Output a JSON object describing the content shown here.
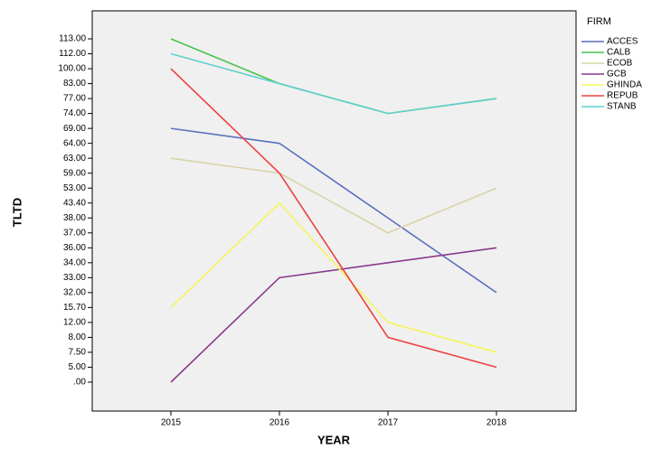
{
  "chart_data": {
    "type": "line",
    "x_label": "YEAR",
    "y_label": "TLTD",
    "y_scale": "ordinal",
    "legend_title": "FIRM",
    "legend_position": "right",
    "background": "#f0f0f0",
    "categories": [
      "2015",
      "2016",
      "2017",
      "2018"
    ],
    "yticks": [
      {
        "value": 113,
        "label": "113.00"
      },
      {
        "value": 112,
        "label": "112.00"
      },
      {
        "value": 100,
        "label": "100.00"
      },
      {
        "value": 83,
        "label": "83.00"
      },
      {
        "value": 77,
        "label": "77.00"
      },
      {
        "value": 74,
        "label": "74.00"
      },
      {
        "value": 69,
        "label": "69.00"
      },
      {
        "value": 64,
        "label": "64.00"
      },
      {
        "value": 63,
        "label": "63.00"
      },
      {
        "value": 59,
        "label": "59.00"
      },
      {
        "value": 53,
        "label": "53.00"
      },
      {
        "value": 43.4,
        "label": "43.40"
      },
      {
        "value": 38,
        "label": "38.00"
      },
      {
        "value": 37,
        "label": "37.00"
      },
      {
        "value": 36,
        "label": "36.00"
      },
      {
        "value": 34,
        "label": "34.00"
      },
      {
        "value": 33,
        "label": "33.00"
      },
      {
        "value": 32,
        "label": "32.00"
      },
      {
        "value": 15.7,
        "label": "15.70"
      },
      {
        "value": 12,
        "label": "12.00"
      },
      {
        "value": 8,
        "label": "8.00"
      },
      {
        "value": 7.5,
        "label": "7.50"
      },
      {
        "value": 5,
        "label": "5.00"
      },
      {
        "value": 0,
        "label": ".00"
      }
    ],
    "series": [
      {
        "name": "ACCES",
        "color": "#5b6fbf",
        "values": [
          69,
          64,
          38,
          32
        ]
      },
      {
        "name": "CALB",
        "color": "#4cc44c",
        "values": [
          113,
          83,
          74,
          77
        ]
      },
      {
        "name": "ECOB",
        "color": "#d9d3a8",
        "values": [
          63,
          59,
          37,
          53
        ]
      },
      {
        "name": "GCB",
        "color": "#8b3a8b",
        "values": [
          0,
          33,
          34,
          36
        ]
      },
      {
        "name": "GHINDA",
        "color": "#f5f55a",
        "values": [
          15.7,
          43.4,
          12,
          7.5
        ]
      },
      {
        "name": "REPUB",
        "color": "#ee4040",
        "values": [
          100,
          59,
          8,
          5
        ]
      },
      {
        "name": "STANB",
        "color": "#5fcfcf",
        "values": [
          112,
          83,
          74,
          77
        ]
      }
    ]
  }
}
